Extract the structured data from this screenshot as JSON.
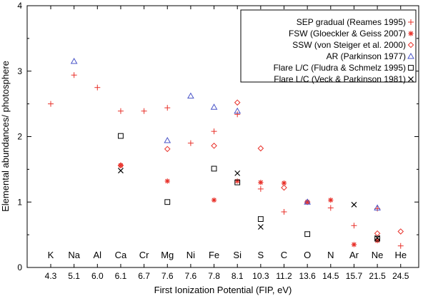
{
  "chart_data": {
    "type": "scatter",
    "xlabel": "First Ionization Potential (FIP, eV)",
    "ylabel": "Elemental abundances/ photosphere",
    "ylim": [
      0,
      4
    ],
    "yticks": [
      "0",
      "1",
      "2",
      "3",
      "4"
    ],
    "categories": [
      "K",
      "Na",
      "Al",
      "Ca",
      "Cr",
      "Mg",
      "Ni",
      "Fe",
      "Si",
      "S",
      "C",
      "O",
      "N",
      "Ar",
      "Ne",
      "He"
    ],
    "fip": [
      "4.3",
      "5.1",
      "6.0",
      "6.1",
      "6.7",
      "7.6",
      "7.6",
      "7.8",
      "8.1",
      "10.3",
      "11.2",
      "13.6",
      "14.5",
      "15.7",
      "21.5",
      "24.5"
    ],
    "legend_position": "top-right",
    "series": [
      {
        "name": "SEP gradual (Reames 1995)",
        "marker": "plus",
        "color": "#e8312a",
        "points": [
          {
            "category": "K",
            "value": 2.5
          },
          {
            "category": "Na",
            "value": 2.94
          },
          {
            "category": "Al",
            "value": 2.75
          },
          {
            "category": "Ca",
            "value": 2.39
          },
          {
            "category": "Cr",
            "value": 2.39
          },
          {
            "category": "Mg",
            "value": 2.44
          },
          {
            "category": "Ni",
            "value": 1.9
          },
          {
            "category": "Fe",
            "value": 2.08
          },
          {
            "category": "Si",
            "value": 2.34
          },
          {
            "category": "S",
            "value": 1.2
          },
          {
            "category": "C",
            "value": 0.85
          },
          {
            "category": "N",
            "value": 0.91
          },
          {
            "category": "Ar",
            "value": 0.64
          },
          {
            "category": "Ne",
            "value": 0.9
          },
          {
            "category": "He",
            "value": 0.33
          }
        ]
      },
      {
        "name": "FSW (Gloeckler & Geiss 2007)",
        "marker": "asterisk",
        "color": "#e8312a",
        "points": [
          {
            "category": "Ca",
            "value": 1.56
          },
          {
            "category": "Mg",
            "value": 1.32
          },
          {
            "category": "Fe",
            "value": 1.03
          },
          {
            "category": "Si",
            "value": 1.32
          },
          {
            "category": "S",
            "value": 1.3
          },
          {
            "category": "C",
            "value": 1.29
          },
          {
            "category": "O",
            "value": 1.0
          },
          {
            "category": "N",
            "value": 1.03
          },
          {
            "category": "Ar",
            "value": 0.35
          },
          {
            "category": "Ne",
            "value": 0.41
          }
        ]
      },
      {
        "name": "SSW (von Steiger et al. 2000)",
        "marker": "diamond",
        "color": "#e8312a",
        "points": [
          {
            "category": "Ca",
            "value": 1.56
          },
          {
            "category": "Mg",
            "value": 1.81
          },
          {
            "category": "Fe",
            "value": 1.86
          },
          {
            "category": "Si",
            "value": 2.52
          },
          {
            "category": "S",
            "value": 1.82
          },
          {
            "category": "C",
            "value": 1.22
          },
          {
            "category": "O",
            "value": 1.0
          },
          {
            "category": "Ne",
            "value": 0.52
          },
          {
            "category": "He",
            "value": 0.55
          }
        ]
      },
      {
        "name": "AR (Parkinson 1977)",
        "marker": "triangle",
        "color": "#4a55c8",
        "points": [
          {
            "category": "Na",
            "value": 3.15
          },
          {
            "category": "Mg",
            "value": 1.94
          },
          {
            "category": "Ni",
            "value": 2.62
          },
          {
            "category": "Fe",
            "value": 2.45
          },
          {
            "category": "Si",
            "value": 2.39
          },
          {
            "category": "O",
            "value": 1.0
          },
          {
            "category": "Ne",
            "value": 0.91
          }
        ]
      },
      {
        "name": "Flare L/C (Fludra & Schmelz 1995)",
        "marker": "square",
        "color": "#000000",
        "points": [
          {
            "category": "Ca",
            "value": 2.01
          },
          {
            "category": "Mg",
            "value": 1.0
          },
          {
            "category": "Fe",
            "value": 1.51
          },
          {
            "category": "Si",
            "value": 1.3
          },
          {
            "category": "S",
            "value": 0.74
          },
          {
            "category": "O",
            "value": 0.51
          },
          {
            "category": "Ne",
            "value": 0.44
          }
        ]
      },
      {
        "name": "Flare L/C (Veck & Parkinson 1981)",
        "marker": "cross",
        "color": "#000000",
        "points": [
          {
            "category": "Ca",
            "value": 1.48
          },
          {
            "category": "Si",
            "value": 1.44
          },
          {
            "category": "S",
            "value": 0.62
          },
          {
            "category": "Ar",
            "value": 0.96
          },
          {
            "category": "Ne",
            "value": 0.45
          }
        ]
      }
    ]
  }
}
